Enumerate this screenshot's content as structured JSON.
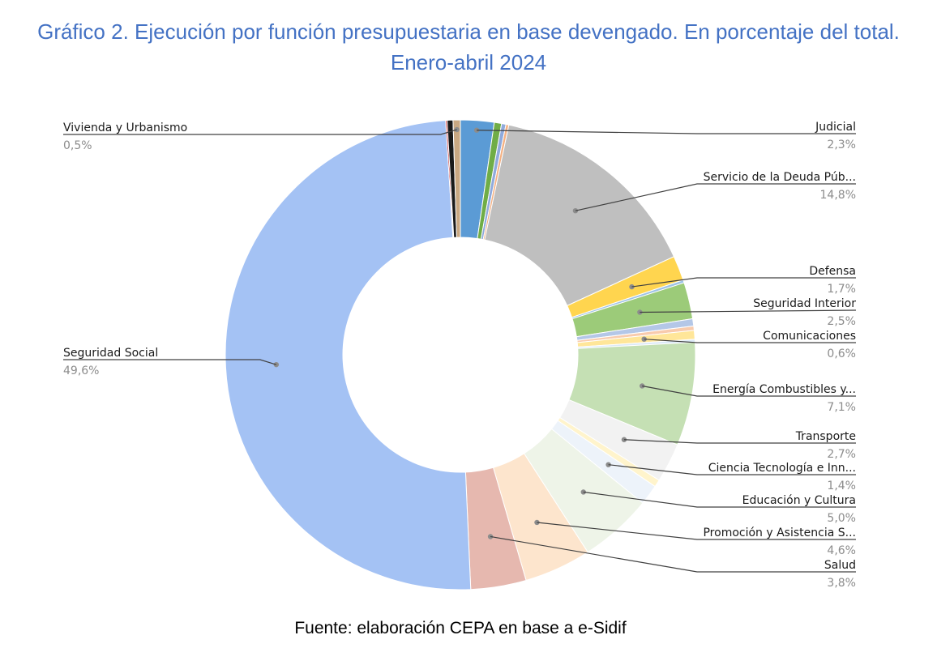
{
  "title": "Gráfico 2. Ejecución por función presupuestaria en base devengado. En porcentaje del total. Enero-abril 2024",
  "source": "Fuente: elaboración CEPA en base a e-Sidif",
  "chart_data": {
    "type": "pie",
    "donut": true,
    "title": "Gráfico 2. Ejecución por función presupuestaria en base devengado. En porcentaje del total. Enero-abril 2024",
    "slices": [
      {
        "label": "Judicial",
        "value": 2.3,
        "value_label": "2,3%",
        "color": "#5b9bd5"
      },
      {
        "label": "",
        "value": 0.5,
        "value_label": "",
        "color": "#70ad47"
      },
      {
        "label": "",
        "value": 0.3,
        "value_label": "",
        "color": "#8faadc"
      },
      {
        "label": "",
        "value": 0.2,
        "value_label": "",
        "color": "#f4b183"
      },
      {
        "label": "Servicio de la Deuda Púb...",
        "value": 14.8,
        "value_label": "14,8%",
        "color": "#bfbfbf"
      },
      {
        "label": "Defensa",
        "value": 1.7,
        "value_label": "1,7%",
        "color": "#ffd54f"
      },
      {
        "label": "",
        "value": 0.2,
        "value_label": "",
        "color": "#9dc3e6"
      },
      {
        "label": "Seguridad Interior",
        "value": 2.5,
        "value_label": "2,5%",
        "color": "#9ccb79"
      },
      {
        "label": "",
        "value": 0.5,
        "value_label": "",
        "color": "#b4c7e7"
      },
      {
        "label": "",
        "value": 0.3,
        "value_label": "",
        "color": "#f8cbad"
      },
      {
        "label": "Comunicaciones",
        "value": 0.6,
        "value_label": "0,6%",
        "color": "#ffe699"
      },
      {
        "label": "",
        "value": 0.2,
        "value_label": "",
        "color": "#dbe9f7"
      },
      {
        "label": "Energía Combustibles y...",
        "value": 7.1,
        "value_label": "7,1%",
        "color": "#c5e0b4"
      },
      {
        "label": "Transporte",
        "value": 2.7,
        "value_label": "2,7%",
        "color": "#f2f2f2"
      },
      {
        "label": "",
        "value": 0.5,
        "value_label": "",
        "color": "#fff4cc"
      },
      {
        "label": "Ciencia Tecnología e Inn...",
        "value": 1.4,
        "value_label": "1,4%",
        "color": "#edf3fa"
      },
      {
        "label": "Educación y Cultura",
        "value": 5.0,
        "value_label": "5,0%",
        "color": "#eef4e8"
      },
      {
        "label": "Promoción y Asistencia S...",
        "value": 4.6,
        "value_label": "4,6%",
        "color": "#fde5cd"
      },
      {
        "label": "Salud",
        "value": 3.8,
        "value_label": "3,8%",
        "color": "#e6b8af"
      },
      {
        "label": "Seguridad Social",
        "value": 49.6,
        "value_label": "49,6%",
        "color": "#a4c2f4"
      },
      {
        "label": "",
        "value": 0.1,
        "value_label": "",
        "color": "#c00000"
      },
      {
        "label": "",
        "value": 0.4,
        "value_label": "",
        "color": "#1a1a1a"
      },
      {
        "label": "Vivienda y Urbanismo",
        "value": 0.5,
        "value_label": "0,5%",
        "color": "#c9a882"
      }
    ],
    "legend": "callout labels"
  }
}
